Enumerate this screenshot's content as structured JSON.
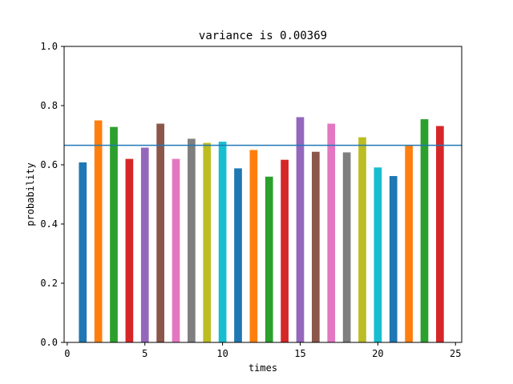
{
  "chart_data": {
    "type": "bar",
    "title": "variance is 0.00369",
    "xlabel": "times",
    "ylabel": "probability",
    "xlim": [
      -0.2,
      25.4
    ],
    "ylim": [
      0,
      1.0
    ],
    "x_ticks": [
      0,
      5,
      10,
      15,
      20,
      25
    ],
    "y_ticks": [
      0.0,
      0.2,
      0.4,
      0.6,
      0.8,
      1.0
    ],
    "x_tick_labels": [
      "0",
      "5",
      "10",
      "15",
      "20",
      "25"
    ],
    "y_tick_labels": [
      "0.0",
      "0.2",
      "0.4",
      "0.6",
      "0.8",
      "1.0"
    ],
    "bar_width": 0.5,
    "x": [
      1,
      2,
      3,
      4,
      5,
      6,
      7,
      8,
      9,
      10,
      11,
      12,
      13,
      14,
      15,
      16,
      17,
      18,
      19,
      20,
      21,
      22,
      23,
      24
    ],
    "values": [
      0.608,
      0.75,
      0.728,
      0.62,
      0.658,
      0.739,
      0.62,
      0.688,
      0.674,
      0.678,
      0.588,
      0.65,
      0.56,
      0.617,
      0.761,
      0.644,
      0.739,
      0.642,
      0.693,
      0.591,
      0.562,
      0.664,
      0.754,
      0.731
    ],
    "colors": [
      "#1f77b4",
      "#ff7f0e",
      "#2ca02c",
      "#d62728",
      "#9467bd",
      "#8c564b",
      "#e377c2",
      "#7f7f7f",
      "#bcbd22",
      "#17becf",
      "#1f77b4",
      "#ff7f0e",
      "#2ca02c",
      "#d62728",
      "#9467bd",
      "#8c564b",
      "#e377c2",
      "#7f7f7f",
      "#bcbd22",
      "#17becf",
      "#1f77b4",
      "#ff7f0e",
      "#2ca02c",
      "#d62728"
    ],
    "mean_line": {
      "value": 0.666,
      "color": "#1f77b4"
    },
    "grid": false,
    "legend": "none"
  }
}
